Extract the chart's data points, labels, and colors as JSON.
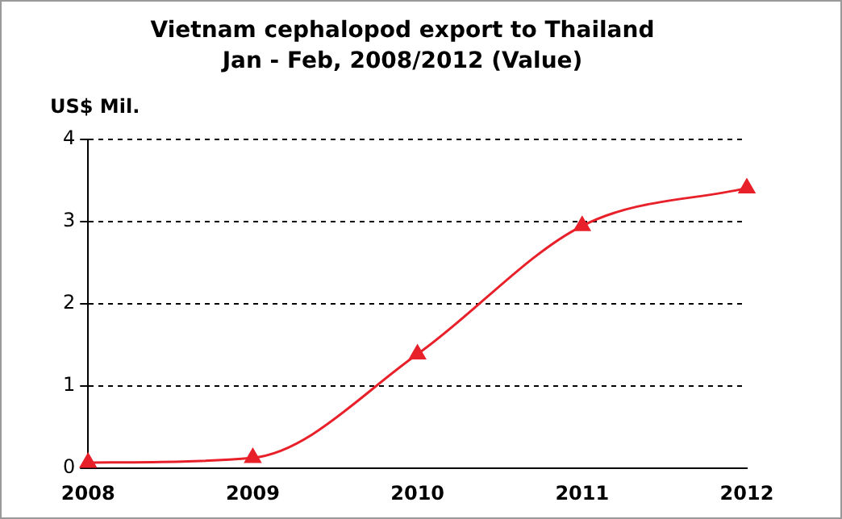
{
  "chart_data": {
    "type": "line",
    "title": "Vietnam cephalopod export to Thailand",
    "subtitle": "Jan - Feb, 2008/2012 (Value)",
    "ylabel": "US$ Mil.",
    "categories": [
      "2008",
      "2009",
      "2010",
      "2011",
      "2012"
    ],
    "series": [
      {
        "color": "#e8202a",
        "values": [
          0.07,
          0.13,
          1.39,
          2.95,
          3.41
        ]
      }
    ],
    "ylim": [
      0,
      4
    ],
    "yticks": [
      0,
      1,
      2,
      3,
      4
    ],
    "grid": "y",
    "legend": false,
    "marker": "triangle",
    "line_style": "solid"
  }
}
